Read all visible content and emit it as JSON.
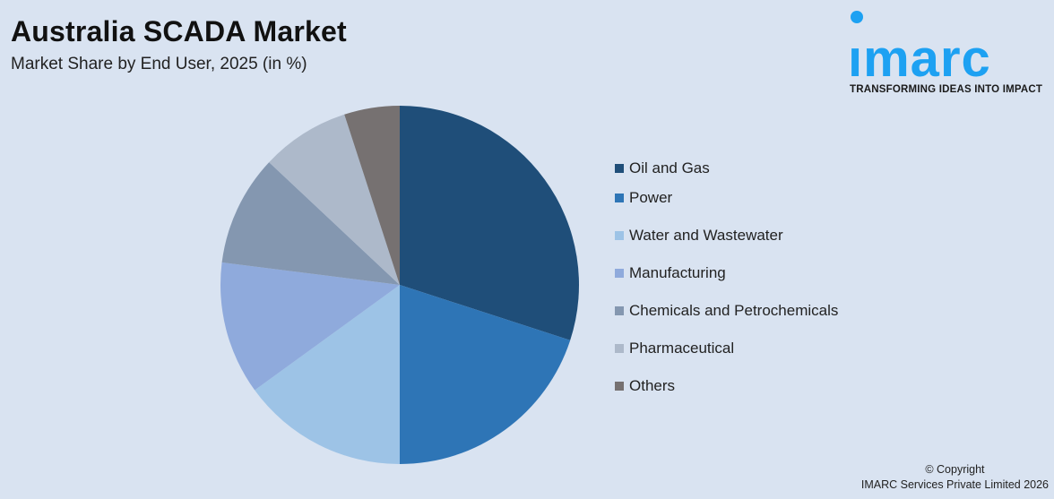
{
  "header": {
    "title": "Australia SCADA Market",
    "subtitle": "Market Share by End User, 2025 (in %)"
  },
  "logo": {
    "word": "ımarc",
    "tagline": "TRANSFORMING IDEAS INTO IMPACT",
    "color": "#1da1f2"
  },
  "legend": {
    "items": [
      {
        "label": "Oil and Gas",
        "color": "#1f4e79"
      },
      {
        "label": "Power",
        "color": "#2e75b6"
      },
      {
        "label": "Water and Wastewater",
        "color": "#9dc3e6"
      },
      {
        "label": "Manufacturing",
        "color": "#8faadc"
      },
      {
        "label": "Chemicals and Petrochemicals",
        "color": "#8497b0"
      },
      {
        "label": "Pharmaceutical",
        "color": "#adb9ca"
      },
      {
        "label": "Others",
        "color": "#767171"
      }
    ]
  },
  "footer": {
    "line1": "© Copyright",
    "line2": "IMARC Services Private Limited 2026"
  },
  "chart_data": {
    "type": "pie",
    "title": "Australia SCADA Market",
    "subtitle": "Market Share by End User, 2025 (in %)",
    "categories": [
      "Oil and Gas",
      "Power",
      "Water and Wastewater",
      "Manufacturing",
      "Chemicals and Petrochemicals",
      "Pharmaceutical",
      "Others"
    ],
    "values": [
      30,
      20,
      15,
      12,
      10,
      8,
      5
    ],
    "colors": [
      "#1f4e79",
      "#2e75b6",
      "#9dc3e6",
      "#8faadc",
      "#8497b0",
      "#adb9ca",
      "#767171"
    ],
    "start_angle": "12 o'clock, clockwise",
    "legend_position": "right",
    "data_labels": false
  }
}
